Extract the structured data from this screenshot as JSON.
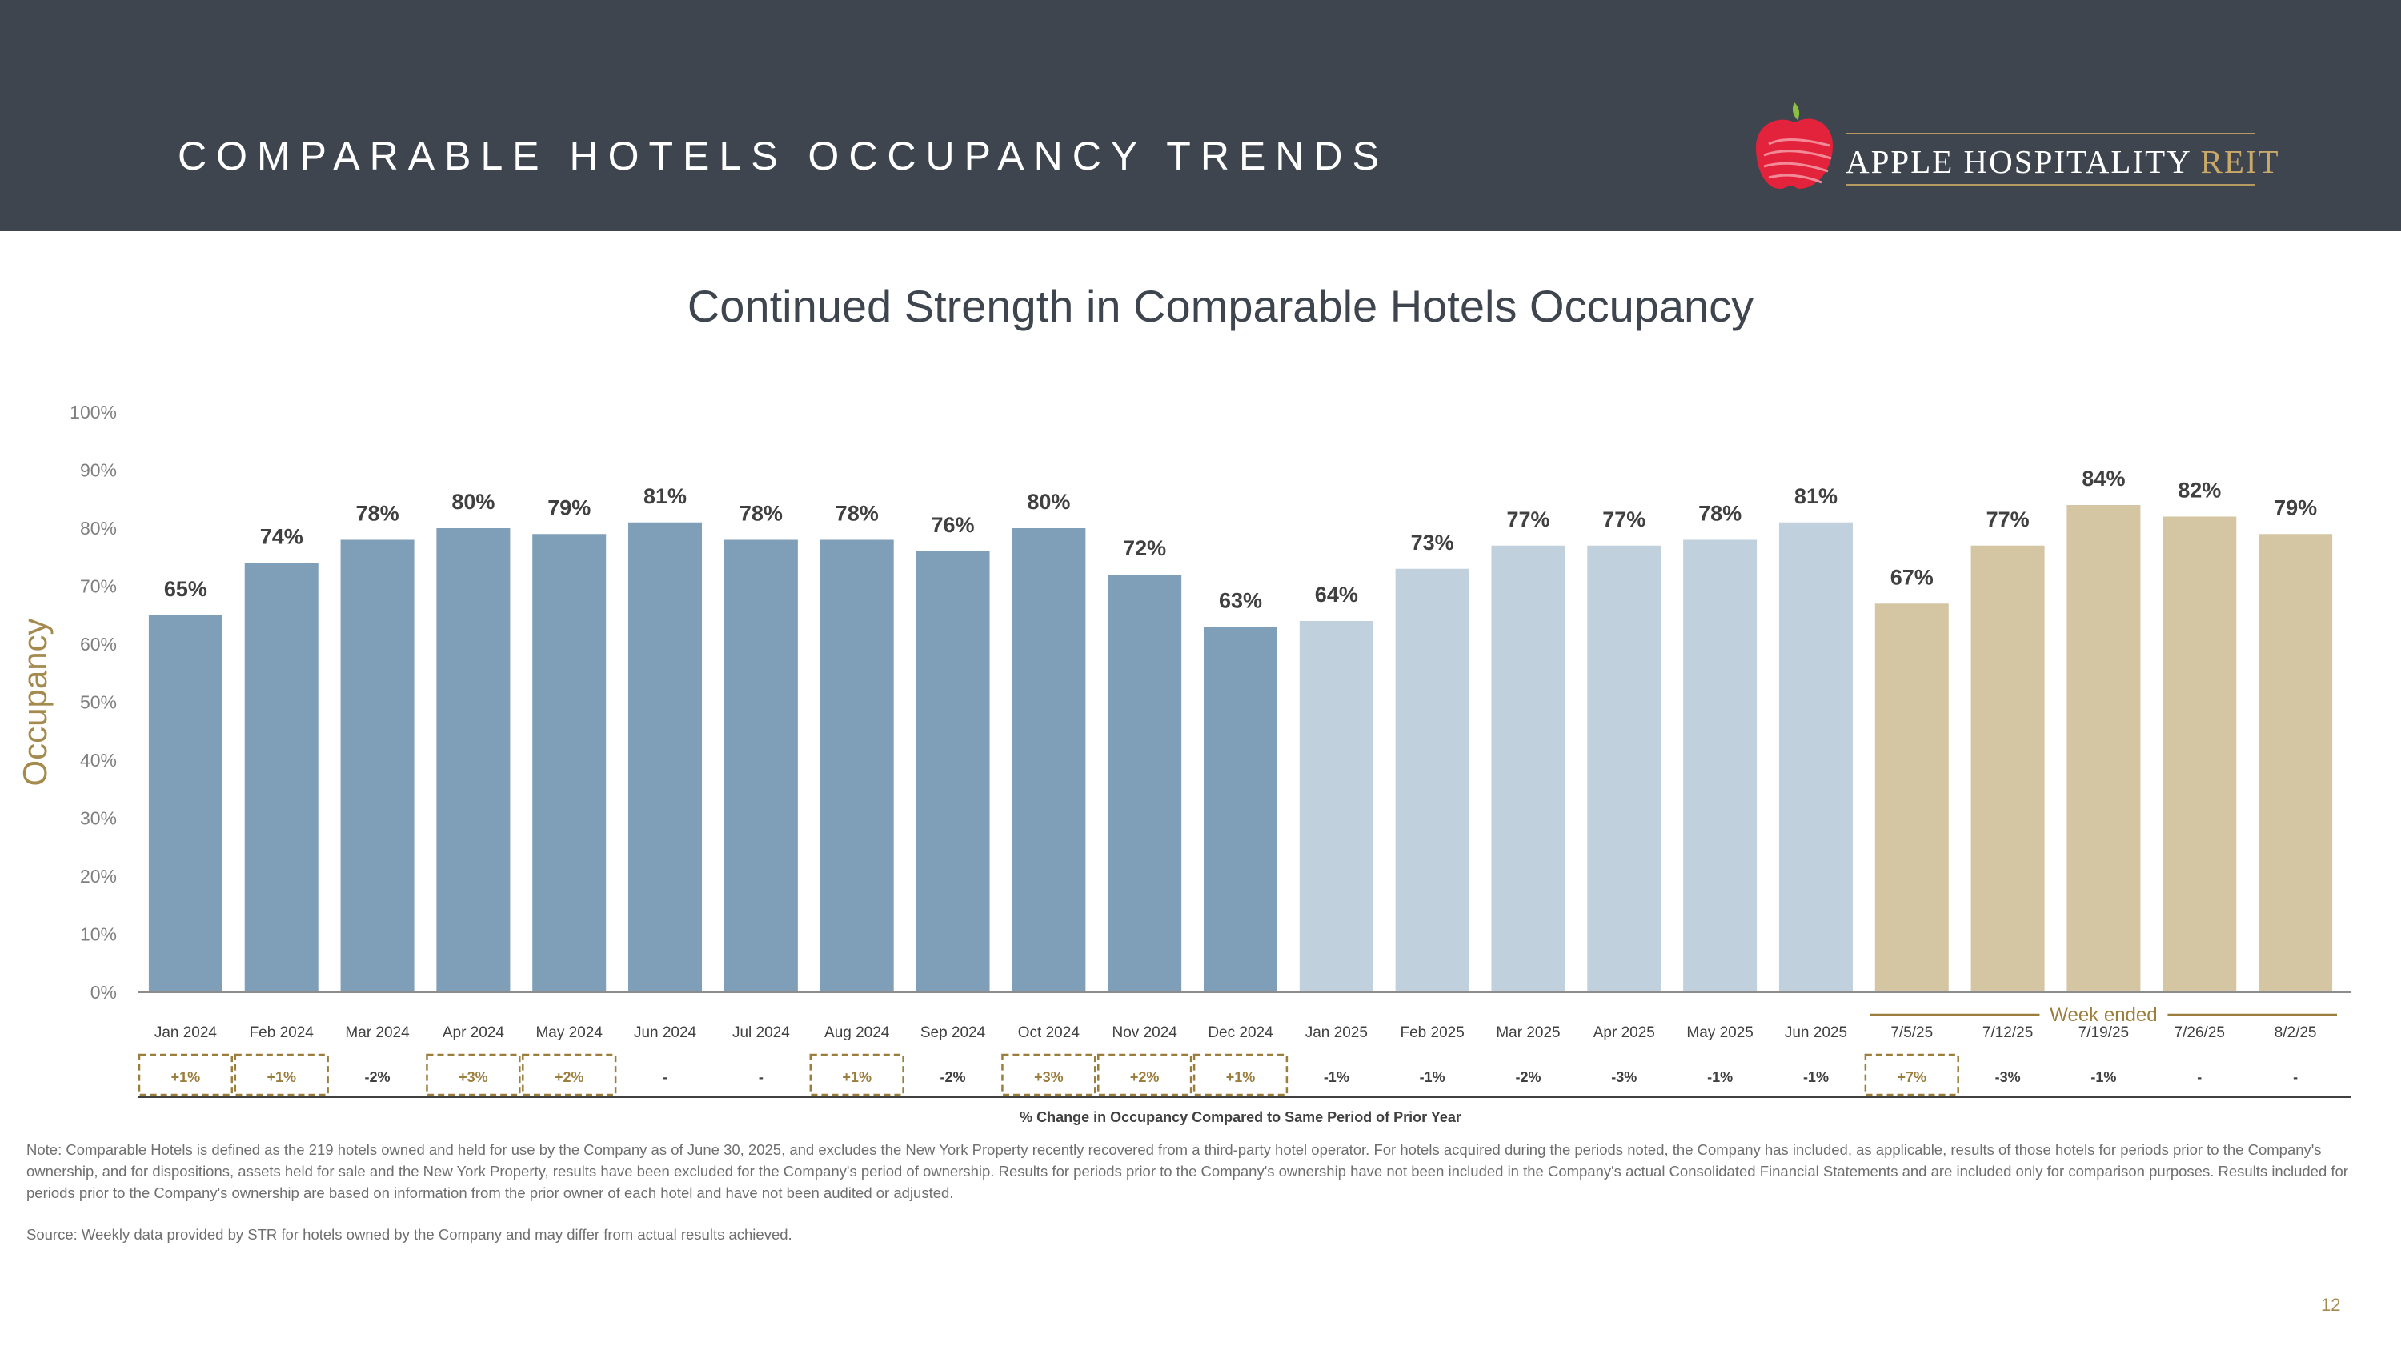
{
  "header": {
    "title": "COMPARABLE HOTELS OCCUPANCY TRENDS",
    "logo_text_main": "APPLE HOSPITALITY",
    "logo_text_accent": "REIT"
  },
  "chart_data": {
    "type": "bar",
    "title": "Continued Strength in Comparable Hotels Occupancy",
    "ylabel": "Occupancy",
    "ylim": [
      0,
      100
    ],
    "y_ticks": [
      "0%",
      "10%",
      "20%",
      "30%",
      "40%",
      "50%",
      "60%",
      "70%",
      "80%",
      "90%",
      "100%"
    ],
    "categories": [
      "Jan 2024",
      "Feb 2024",
      "Mar 2024",
      "Apr 2024",
      "May 2024",
      "Jun 2024",
      "Jul 2024",
      "Aug 2024",
      "Sep 2024",
      "Oct 2024",
      "Nov 2024",
      "Dec 2024",
      "Jan 2025",
      "Feb 2025",
      "Mar 2025",
      "Apr 2025",
      "May 2025",
      "Jun 2025",
      "7/5/25",
      "7/12/25",
      "7/19/25",
      "7/26/25",
      "8/2/25"
    ],
    "values": [
      65,
      74,
      78,
      80,
      79,
      81,
      78,
      78,
      76,
      80,
      72,
      63,
      64,
      73,
      77,
      77,
      78,
      81,
      67,
      77,
      84,
      82,
      79
    ],
    "value_labels": [
      "65%",
      "74%",
      "78%",
      "80%",
      "79%",
      "81%",
      "78%",
      "78%",
      "76%",
      "80%",
      "72%",
      "63%",
      "64%",
      "73%",
      "77%",
      "77%",
      "78%",
      "81%",
      "67%",
      "77%",
      "84%",
      "82%",
      "79%"
    ],
    "groups": [
      {
        "label": "",
        "start": 0,
        "end": 11,
        "color": "#7f9fb8"
      },
      {
        "label": "",
        "start": 12,
        "end": 17,
        "color": "#c0d0dd"
      },
      {
        "label": "Week ended",
        "start": 18,
        "end": 22,
        "color": "#d4c5a3"
      }
    ],
    "change_title": "% Change in Occupancy Compared to Same Period of Prior Year",
    "change_labels": [
      "+1%",
      "+1%",
      "-2%",
      "+3%",
      "+2%",
      "-",
      "-",
      "+1%",
      "-2%",
      "+3%",
      "+2%",
      "+1%",
      "-1%",
      "-1%",
      "-2%",
      "-3%",
      "-1%",
      "-1%",
      "+7%",
      "-3%",
      "-1%",
      "-",
      "-"
    ],
    "change_highlight": [
      true,
      true,
      false,
      true,
      true,
      false,
      false,
      true,
      false,
      true,
      true,
      true,
      false,
      false,
      false,
      false,
      false,
      false,
      true,
      false,
      false,
      false,
      false
    ],
    "colors": {
      "axis_text": "#7f7f7f",
      "label_text": "#404040",
      "highlight": "#9b7d3c",
      "ylabel": "#a58a4e"
    }
  },
  "footer": {
    "note": "Note: Comparable Hotels is defined as the 219 hotels owned and held for use by the Company as of June 30, 2025, and excludes the New York Property recently recovered from a third-party hotel operator. For hotels acquired during the periods noted, the Company has included, as applicable, results of those hotels for periods prior to the Company's ownership, and for dispositions, assets held for sale and the New York Property, results have been excluded for the Company's period of ownership. Results for periods prior to the Company's ownership have not been included in the Company's actual Consolidated Financial Statements and are included only for comparison purposes. Results included for periods prior to the Company's ownership are based on information from the prior owner of each hotel and have not been audited or adjusted.",
    "source": "Source:  Weekly data provided by STR for hotels owned by the Company and may differ from actual results achieved.",
    "page_number": "12"
  }
}
